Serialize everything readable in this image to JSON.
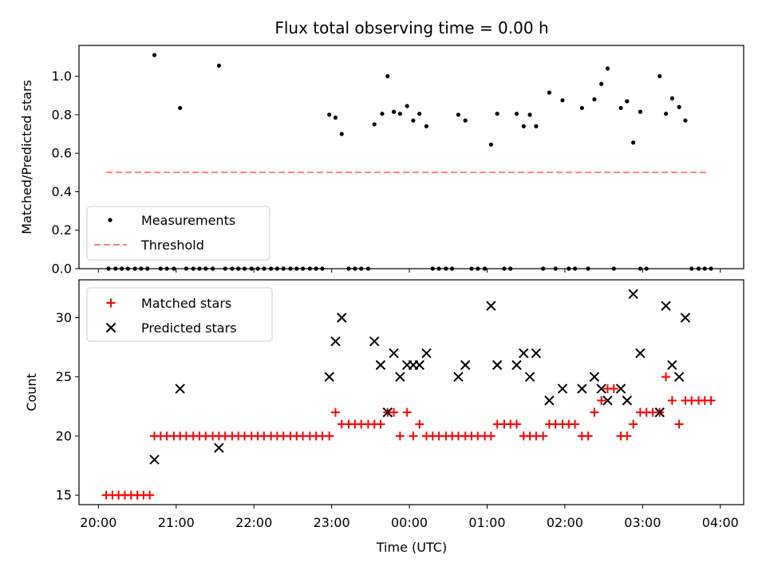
{
  "chart_data": [
    {
      "type": "scatter",
      "title": "Flux total observing time = 0.00 h",
      "xlabel": "",
      "ylabel": "Matched/Predicted stars",
      "ylim": [
        0,
        1.16
      ],
      "yticks": [
        "0.0",
        "0.2",
        "0.4",
        "0.6",
        "0.8",
        "1.0"
      ],
      "ytick_values": [
        0,
        0.2,
        0.4,
        0.6,
        0.8,
        1.0
      ],
      "legend": {
        "placement": "lower-left",
        "entries": [
          "Measurements",
          "Threshold"
        ]
      },
      "threshold": {
        "name": "Threshold",
        "value": 0.5,
        "x_range": [
          20.1,
          27.85
        ],
        "color": "#ff8080"
      },
      "series": [
        {
          "name": "Measurements",
          "color": "#000000",
          "x": [
            20.72,
            21.05,
            21.55,
            22.97,
            23.05,
            23.13,
            23.55,
            23.65,
            23.72,
            23.8,
            23.88,
            23.97,
            24.05,
            24.13,
            24.22,
            24.63,
            24.72,
            25.05,
            25.13,
            25.38,
            25.47,
            25.55,
            25.63,
            25.8,
            25.97,
            26.22,
            26.38,
            26.47,
            26.55,
            26.72,
            26.8,
            26.88,
            26.97,
            27.22,
            27.3,
            27.38,
            27.47,
            27.55
          ],
          "y": [
            1.11,
            0.835,
            1.055,
            0.8,
            0.785,
            0.7,
            0.75,
            0.805,
            1.0,
            0.815,
            0.805,
            0.845,
            0.77,
            0.805,
            0.74,
            0.8,
            0.77,
            0.645,
            0.805,
            0.805,
            0.74,
            0.8,
            0.74,
            0.915,
            0.875,
            0.835,
            0.88,
            0.96,
            1.04,
            0.835,
            0.87,
            0.655,
            0.815,
            1.0,
            0.805,
            0.885,
            0.84,
            0.77
          ]
        },
        {
          "name": "",
          "color": "#000000",
          "x": [
            20.13,
            20.22,
            20.3,
            20.38,
            20.47,
            20.55,
            20.63,
            20.8,
            20.88,
            20.97,
            21.13,
            21.22,
            21.3,
            21.38,
            21.47,
            21.63,
            21.72,
            21.8,
            21.88,
            21.97,
            22.05,
            22.13,
            22.22,
            22.3,
            22.38,
            22.47,
            22.55,
            22.63,
            22.72,
            22.8,
            22.88,
            23.22,
            23.3,
            23.38,
            23.47,
            24.3,
            24.38,
            24.47,
            24.55,
            24.8,
            24.88,
            24.97,
            25.22,
            25.3,
            25.72,
            25.88,
            26.05,
            26.13,
            26.3,
            26.63,
            26.97,
            27.05,
            27.63,
            27.72,
            27.8,
            27.88
          ],
          "y": [
            0,
            0,
            0,
            0,
            0,
            0,
            0,
            0,
            0,
            0,
            0,
            0,
            0,
            0,
            0,
            0,
            0,
            0,
            0,
            0,
            0,
            0,
            0,
            0,
            0,
            0,
            0,
            0,
            0,
            0,
            0,
            0,
            0,
            0,
            0,
            0,
            0,
            0,
            0,
            0,
            0,
            0,
            0,
            0,
            0,
            0,
            0,
            0,
            0,
            0,
            0,
            0,
            0,
            0,
            0,
            0
          ]
        }
      ]
    },
    {
      "type": "scatter",
      "title": "",
      "xlabel": "Time (UTC)",
      "ylabel": "Count",
      "ylim": [
        14.2,
        33.2
      ],
      "yticks": [
        "15",
        "20",
        "25",
        "30"
      ],
      "ytick_values": [
        15,
        20,
        25,
        30
      ],
      "xlim": [
        19.75,
        28.3
      ],
      "xticks": [
        "20:00",
        "21:00",
        "22:00",
        "23:00",
        "00:00",
        "01:00",
        "02:00",
        "03:00",
        "04:00"
      ],
      "xtick_values": [
        20,
        21,
        22,
        23,
        24,
        25,
        26,
        27,
        28
      ],
      "legend": {
        "placement": "top-left",
        "entries": [
          "Matched stars",
          "Predicted stars"
        ]
      },
      "series": [
        {
          "name": "Matched stars",
          "color": "#ff0000",
          "marker": "plus",
          "x": [
            20.1,
            20.18,
            20.26,
            20.34,
            20.42,
            20.5,
            20.58,
            20.66,
            20.72,
            20.8,
            20.88,
            20.97,
            21.05,
            21.13,
            21.22,
            21.3,
            21.38,
            21.47,
            21.55,
            21.63,
            21.72,
            21.8,
            21.88,
            21.97,
            22.05,
            22.13,
            22.22,
            22.3,
            22.38,
            22.47,
            22.55,
            22.63,
            22.72,
            22.8,
            22.88,
            22.97,
            23.05,
            23.13,
            23.22,
            23.3,
            23.38,
            23.47,
            23.55,
            23.63,
            23.72,
            23.8,
            23.88,
            23.97,
            24.05,
            24.13,
            24.22,
            24.3,
            24.38,
            24.47,
            24.55,
            24.63,
            24.72,
            24.8,
            24.88,
            24.97,
            25.05,
            25.13,
            25.22,
            25.3,
            25.38,
            25.47,
            25.55,
            25.63,
            25.72,
            25.8,
            25.88,
            25.97,
            26.05,
            26.13,
            26.22,
            26.3,
            26.38,
            26.47,
            26.55,
            26.63,
            26.72,
            26.8,
            26.88,
            26.97,
            27.05,
            27.13,
            27.22,
            27.3,
            27.38,
            27.47,
            27.55,
            27.63,
            27.72,
            27.8,
            27.88
          ],
          "y": [
            15,
            15,
            15,
            15,
            15,
            15,
            15,
            15,
            20,
            20,
            20,
            20,
            20,
            20,
            20,
            20,
            20,
            20,
            20,
            20,
            20,
            20,
            20,
            20,
            20,
            20,
            20,
            20,
            20,
            20,
            20,
            20,
            20,
            20,
            20,
            20,
            22,
            21,
            21,
            21,
            21,
            21,
            21,
            21,
            22,
            22,
            20,
            22,
            20,
            21,
            20,
            20,
            20,
            20,
            20,
            20,
            20,
            20,
            20,
            20,
            20,
            21,
            21,
            21,
            21,
            20,
            20,
            20,
            20,
            21,
            21,
            21,
            21,
            21,
            20,
            20,
            22,
            23,
            24,
            24,
            20,
            20,
            21,
            22,
            22,
            22,
            22,
            25,
            23,
            21,
            23,
            23,
            23,
            23,
            23
          ]
        },
        {
          "name": "Predicted stars",
          "color": "#000000",
          "marker": "x",
          "x": [
            20.72,
            21.05,
            21.55,
            22.97,
            23.05,
            23.13,
            23.55,
            23.63,
            23.72,
            23.8,
            23.88,
            23.97,
            24.05,
            24.13,
            24.22,
            24.63,
            24.72,
            25.05,
            25.13,
            25.38,
            25.47,
            25.55,
            25.63,
            25.8,
            25.97,
            26.22,
            26.38,
            26.47,
            26.55,
            26.72,
            26.8,
            26.88,
            26.97,
            27.22,
            27.3,
            27.38,
            27.47,
            27.55
          ],
          "y": [
            18,
            24,
            19,
            25,
            28,
            30,
            28,
            26,
            22,
            27,
            25,
            26,
            26,
            26,
            27,
            25,
            26,
            31,
            26,
            26,
            27,
            25,
            27,
            23,
            24,
            24,
            25,
            24,
            23,
            24,
            23,
            32,
            27,
            22,
            31,
            26,
            25,
            30
          ]
        }
      ]
    }
  ]
}
